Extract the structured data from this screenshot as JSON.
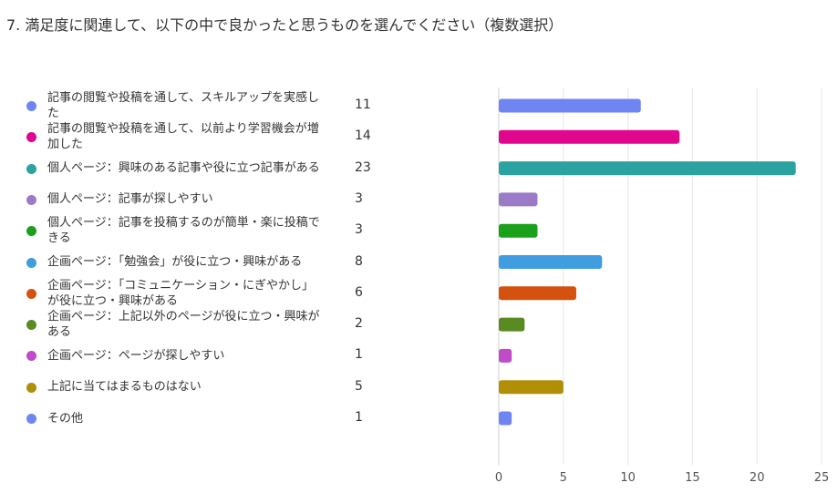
{
  "title": "7. 満足度に関連して、以下の中で良かったと思うものを選んでください（複数選択）",
  "chart_data": {
    "type": "bar",
    "orientation": "horizontal",
    "xlim": [
      0,
      25
    ],
    "xticks": [
      0,
      5,
      10,
      15,
      20,
      25
    ],
    "grid": true,
    "legend": "left",
    "categories": [
      {
        "label": "記事の閲覧や投稿を通して、スキルアップを実感した",
        "value": 11,
        "color": "#6f86f2"
      },
      {
        "label": "記事の閲覧や投稿を通して、以前より学習機会が増加した",
        "value": 14,
        "color": "#e0068e"
      },
      {
        "label": "個人ページ：興味のある記事や役に立つ記事がある",
        "value": 23,
        "color": "#2aa3a0"
      },
      {
        "label": "個人ページ：記事が探しやすい",
        "value": 3,
        "color": "#9b7bc8"
      },
      {
        "label": "個人ページ：記事を投稿するのが簡単・楽に投稿できる",
        "value": 3,
        "color": "#1aa01a"
      },
      {
        "label": "企画ページ：「勉強会」が役に立つ・興味がある",
        "value": 8,
        "color": "#3f9de0"
      },
      {
        "label": "企画ページ：「コミュニケーション・にぎやかし」が役に立つ・興味がある",
        "value": 6,
        "color": "#d4520e"
      },
      {
        "label": "企画ページ：上記以外のページが役に立つ・興味がある",
        "value": 2,
        "color": "#5a8a22"
      },
      {
        "label": "企画ページ：ページが探しやすい",
        "value": 1,
        "color": "#c04cc8"
      },
      {
        "label": "上記に当てはまるものはない",
        "value": 5,
        "color": "#b08e06"
      },
      {
        "label": "その他",
        "value": 1,
        "color": "#6f86f2"
      }
    ]
  }
}
